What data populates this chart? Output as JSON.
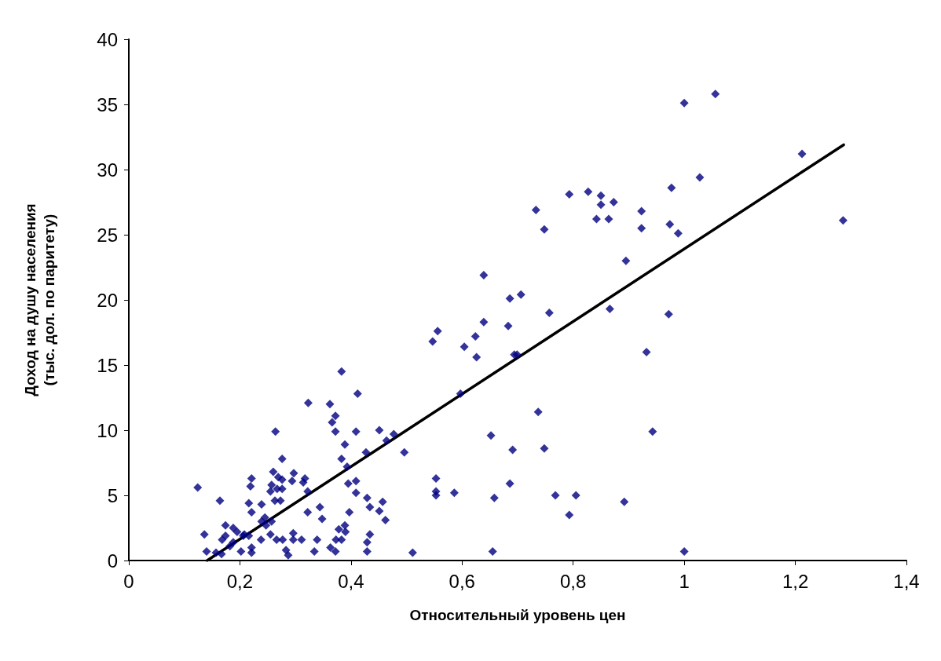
{
  "chart_data": {
    "type": "scatter",
    "xlabel": "Относительный уровень цен",
    "ylabel": "Доход на душу населения\n(тыс. дол. по паритету)",
    "xlim": [
      0,
      1.4
    ],
    "ylim": [
      0,
      40
    ],
    "xticks": [
      0,
      {
        "value": 0.2,
        "label": "0,2"
      },
      {
        "value": 0.4,
        "label": "0,4"
      },
      {
        "value": 0.6,
        "label": "0,6"
      },
      {
        "value": 0.8,
        "label": "0,8"
      },
      1,
      {
        "value": 1.2,
        "label": "1,2"
      },
      {
        "value": 1.4,
        "label": "1,4"
      }
    ],
    "yticks": [
      0,
      5,
      10,
      15,
      20,
      25,
      30,
      35,
      40
    ],
    "grid": false,
    "marker": "diamond",
    "series": [
      {
        "color": "#000080",
        "x": [
          1.056,
          1.0,
          1.212,
          1.028,
          0.977,
          0.793,
          0.827,
          0.85,
          0.873,
          0.85,
          0.733,
          0.923,
          0.842,
          0.864,
          1.286,
          0.748,
          0.923,
          0.974,
          0.989,
          0.895,
          0.757,
          0.866,
          0.972,
          0.932,
          0.737,
          0.943,
          0.748,
          0.768,
          0.805,
          0.793,
          0.892,
          1.0,
          0.639,
          0.686,
          0.706,
          0.556,
          0.547,
          0.639,
          0.683,
          0.624,
          0.604,
          0.626,
          0.694,
          0.699,
          0.597,
          0.652,
          0.691,
          0.553,
          0.553,
          0.553,
          0.586,
          0.686,
          0.658,
          0.511,
          0.655,
          0.383,
          0.412,
          0.323,
          0.362,
          0.372,
          0.366,
          0.264,
          0.372,
          0.409,
          0.451,
          0.477,
          0.464,
          0.389,
          0.427,
          0.496,
          0.276,
          0.383,
          0.393,
          0.26,
          0.269,
          0.276,
          0.297,
          0.294,
          0.317,
          0.314,
          0.395,
          0.409,
          0.409,
          0.322,
          0.255,
          0.267,
          0.276,
          0.263,
          0.273,
          0.429,
          0.457,
          0.434,
          0.451,
          0.344,
          0.322,
          0.397,
          0.348,
          0.462,
          0.257,
          0.389,
          0.378,
          0.39,
          0.255,
          0.266,
          0.277,
          0.296,
          0.296,
          0.311,
          0.339,
          0.434,
          0.429,
          0.373,
          0.383,
          0.283,
          0.287,
          0.334,
          0.363,
          0.372,
          0.429,
          0.124,
          0.164,
          0.221,
          0.219,
          0.216,
          0.239,
          0.221,
          0.257,
          0.174,
          0.188,
          0.195,
          0.136,
          0.208,
          0.216,
          0.239,
          0.245,
          0.247,
          0.238,
          0.168,
          0.174,
          0.188,
          0.182,
          0.206,
          0.202,
          0.221,
          0.221,
          0.14,
          0.157,
          0.167
        ],
        "values": [
          35.8,
          35.1,
          31.2,
          29.4,
          28.6,
          28.1,
          28.3,
          28.0,
          27.5,
          27.3,
          26.9,
          26.8,
          26.2,
          26.2,
          26.1,
          25.4,
          25.5,
          25.8,
          25.1,
          23.0,
          19.0,
          19.3,
          18.9,
          16.0,
          11.4,
          9.9,
          8.6,
          5.0,
          5.0,
          3.5,
          4.5,
          0.7,
          21.9,
          20.1,
          20.4,
          17.6,
          16.8,
          18.3,
          18.0,
          17.2,
          16.4,
          15.6,
          15.8,
          15.8,
          12.8,
          9.6,
          8.5,
          6.3,
          5.3,
          5.0,
          5.2,
          5.9,
          4.8,
          0.6,
          0.7,
          14.5,
          12.8,
          12.1,
          12.0,
          11.1,
          10.6,
          9.9,
          9.9,
          9.9,
          10.0,
          9.7,
          9.2,
          8.9,
          8.3,
          8.3,
          7.8,
          7.8,
          7.2,
          6.8,
          6.4,
          6.2,
          6.7,
          6.1,
          6.3,
          6.0,
          5.9,
          6.1,
          5.2,
          5.3,
          5.3,
          5.5,
          5.5,
          4.6,
          4.6,
          4.8,
          4.5,
          4.1,
          3.8,
          4.1,
          3.7,
          3.7,
          3.2,
          3.1,
          3.0,
          2.7,
          2.4,
          2.2,
          2.0,
          1.6,
          1.6,
          2.1,
          1.6,
          1.6,
          1.6,
          2.0,
          1.4,
          1.6,
          1.6,
          0.8,
          0.4,
          0.7,
          1.0,
          0.7,
          0.7,
          5.6,
          4.6,
          6.3,
          5.7,
          4.4,
          4.3,
          3.7,
          5.8,
          2.7,
          2.5,
          2.2,
          2.0,
          2.0,
          1.9,
          3.0,
          3.3,
          2.7,
          1.6,
          1.6,
          1.9,
          1.4,
          1.1,
          1.9,
          0.7,
          1.0,
          0.6,
          0.7,
          0.6,
          0.5
        ]
      },
      {
        "type": "line",
        "color": "#000000",
        "marker": "none",
        "line_style": "solid",
        "x": [
          0.141,
          1.287
        ],
        "values": [
          0,
          31.9
        ]
      }
    ]
  }
}
